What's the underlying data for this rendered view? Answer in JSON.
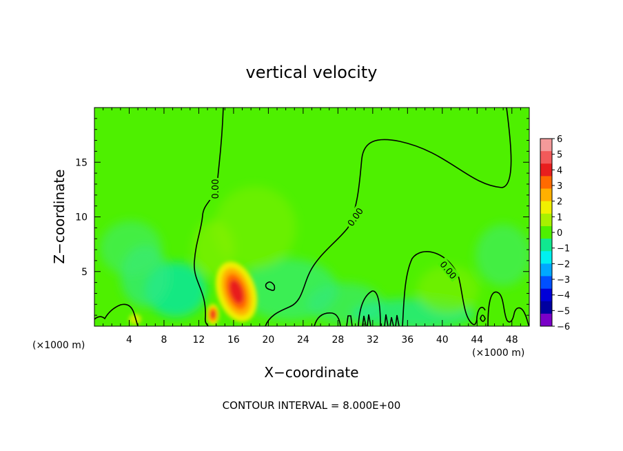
{
  "chart_data": {
    "type": "heatmap",
    "title": "vertical velocity",
    "xlabel": "X−coordinate",
    "ylabel": "Z−coordinate",
    "x_unit_left": "(×1000 m)",
    "x_unit_right": "(×1000 m)",
    "footer": "CONTOUR INTERVAL = 8.000E+00",
    "xlim": [
      0,
      50
    ],
    "ylim": [
      0,
      20
    ],
    "x_ticks": [
      "4",
      "8",
      "12",
      "16",
      "20",
      "24",
      "28",
      "32",
      "36",
      "40",
      "44",
      "48"
    ],
    "y_ticks": [
      "5",
      "10",
      "15"
    ],
    "contour_labels": [
      "0.00",
      "0.00",
      "0.00"
    ],
    "colorbar": {
      "labels": [
        "6",
        "5",
        "4",
        "3",
        "2",
        "1",
        "0",
        "−1",
        "−2",
        "−3",
        "−4",
        "−5",
        "−6"
      ],
      "colors": [
        "#f49a9a",
        "#f25a5a",
        "#e81e1e",
        "#ff6a00",
        "#ffb000",
        "#f0f000",
        "#a8f000",
        "#4ef000",
        "#10e890",
        "#00f0f0",
        "#00a8ff",
        "#0050ff",
        "#0000d8",
        "#0000a0",
        "#7a00c8"
      ]
    },
    "features": [
      {
        "kind": "updraft",
        "x": 16.3,
        "z": 3.2,
        "value": 5.5
      },
      {
        "kind": "updraft",
        "x": 13.7,
        "z": 1.1,
        "value": 4.5
      },
      {
        "kind": "updraft",
        "x": 4.2,
        "z": 0.6,
        "value": 2.0
      },
      {
        "kind": "downdraft",
        "x": 9.8,
        "z": 3.0,
        "value": -1.8
      },
      {
        "kind": "downdraft",
        "x": 5.5,
        "z": 3.5,
        "value": -1.0
      },
      {
        "kind": "downdraft",
        "x": 37.5,
        "z": 0.5,
        "value": -1.8
      },
      {
        "kind": "downdraft",
        "x": 22.5,
        "z": 1.2,
        "value": -1.2
      }
    ]
  }
}
